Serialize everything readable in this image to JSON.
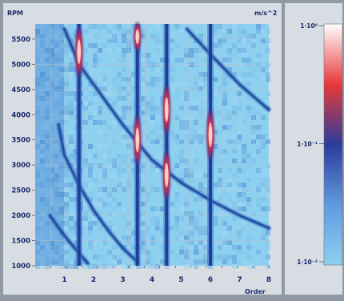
{
  "chart_data": {
    "type": "heatmap",
    "title": "",
    "xlabel": "Order",
    "ylabel": "RPM",
    "xlim": [
      0,
      8
    ],
    "ylim": [
      1000,
      5800
    ],
    "x_ticks": [
      1,
      2,
      3,
      4,
      5,
      6,
      7,
      8
    ],
    "y_ticks": [
      1000,
      1500,
      2000,
      2500,
      3000,
      3500,
      4000,
      4500,
      5000,
      5500
    ],
    "grid": true,
    "colorbar": {
      "label": "m/s^2",
      "scale": "log",
      "ticks": [
        "1·10⁻²",
        "1·10⁻¹",
        "1·10⁰"
      ],
      "colors": [
        "#8fd0f0",
        "#5f9ae0",
        "#2c3c9a",
        "#e8383a",
        "#ffffff"
      ]
    },
    "vertical_order_lines": [
      1.5,
      3.5,
      4.5,
      6
    ],
    "hotspots": [
      {
        "order": 1.5,
        "rpm": 5250,
        "level": "high"
      },
      {
        "order": 3.5,
        "rpm": 3500,
        "level": "high"
      },
      {
        "order": 3.5,
        "rpm": 5550,
        "level": "medium"
      },
      {
        "order": 4.5,
        "rpm": 4100,
        "level": "high"
      },
      {
        "order": 4.5,
        "rpm": 2800,
        "level": "high"
      },
      {
        "order": 6,
        "rpm": 3600,
        "level": "high"
      }
    ],
    "resonance_curves": [
      {
        "name": "",
        "points": [
          [
            1.0,
            5700
          ],
          [
            1.5,
            5000
          ],
          [
            2.0,
            4600
          ],
          [
            2.5,
            4200
          ],
          [
            3.0,
            3800
          ],
          [
            4.0,
            3100
          ],
          [
            5.0,
            2650
          ],
          [
            6.0,
            2300
          ],
          [
            7.0,
            2000
          ],
          [
            8.0,
            1750
          ]
        ]
      },
      {
        "name": "",
        "points": [
          [
            0.8,
            3800
          ],
          [
            1.0,
            3200
          ],
          [
            1.5,
            2600
          ],
          [
            2.0,
            2100
          ],
          [
            2.5,
            1700
          ],
          [
            3.0,
            1350
          ],
          [
            3.5,
            1080
          ]
        ]
      },
      {
        "name": "",
        "points": [
          [
            5.2,
            5700
          ],
          [
            6.0,
            5200
          ],
          [
            7.0,
            4600
          ],
          [
            8.0,
            4100
          ]
        ]
      },
      {
        "name": "",
        "points": [
          [
            0.5,
            2000
          ],
          [
            1.0,
            1600
          ],
          [
            1.5,
            1250
          ],
          [
            1.8,
            1050
          ]
        ]
      }
    ]
  }
}
